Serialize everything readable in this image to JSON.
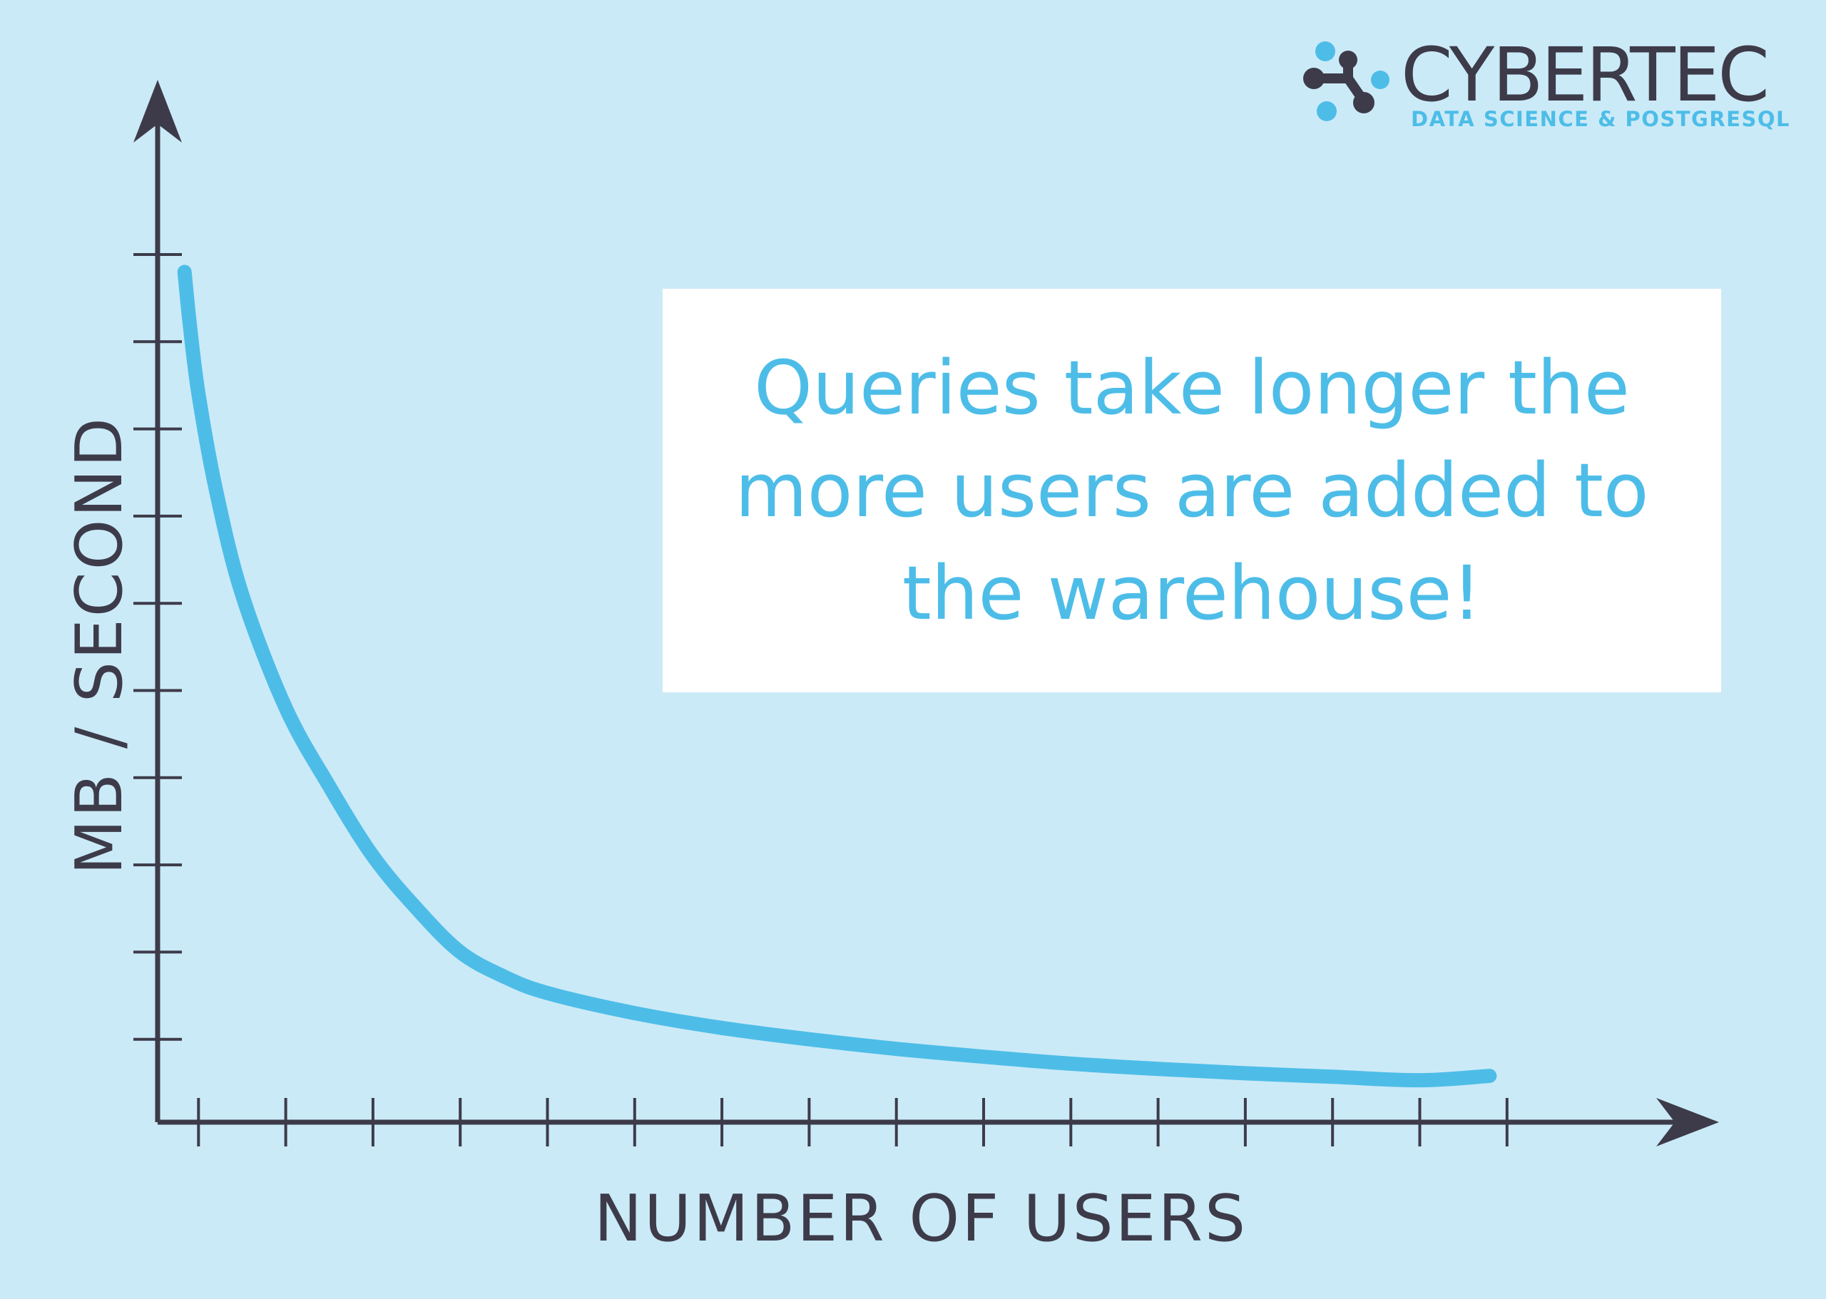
{
  "brand": {
    "name": "CYBERTEC",
    "tagline": "DATA SCIENCE & POSTGRESQL"
  },
  "callout": {
    "text": "Queries take longer the more users are added to the warehouse!"
  },
  "colors": {
    "background": "#cbeaf7",
    "axis": "#3d3b4a",
    "curve": "#4dbde8",
    "callout_background": "#ffffff",
    "callout_text": "#4dbde8"
  },
  "chart_data": {
    "type": "line",
    "title": "",
    "xlabel": "NUMBER OF USERS",
    "ylabel": "MB / SECOND",
    "x_tick_count": 16,
    "y_tick_count": 10,
    "xlim": [
      0,
      16
    ],
    "ylim": [
      0,
      10
    ],
    "grid": false,
    "legend": "none",
    "tick_labels": false,
    "series": [
      {
        "name": "",
        "x": [
          0.84,
          0.9,
          1.0,
          1.2,
          1.5,
          2.0,
          2.5,
          3.0,
          3.5,
          4.0,
          4.5,
          5.0,
          6.0,
          7.0,
          8.0,
          9.0,
          10.0,
          11.0,
          12.0,
          13.0,
          14.0,
          15.0,
          15.8
        ],
        "y": [
          9.8,
          9.2,
          8.4,
          7.3,
          6.1,
          4.8,
          3.9,
          3.1,
          2.5,
          2.0,
          1.72,
          1.53,
          1.3,
          1.13,
          1.0,
          0.89,
          0.8,
          0.72,
          0.66,
          0.61,
          0.57,
          0.53,
          0.58
        ]
      }
    ]
  }
}
